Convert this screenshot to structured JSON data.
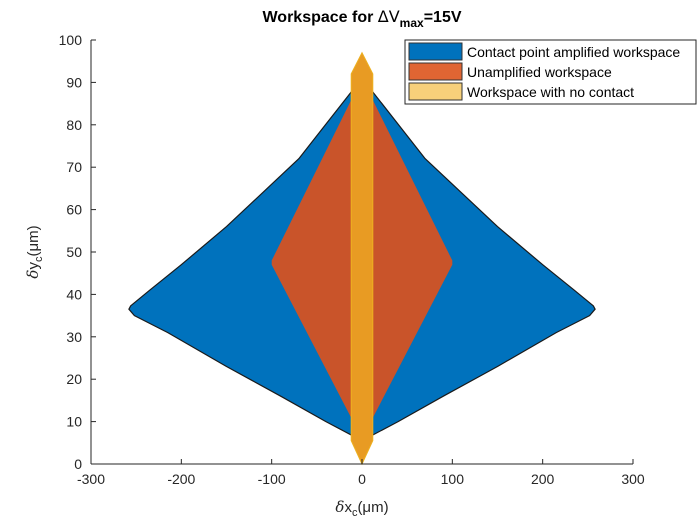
{
  "chart_data": {
    "type": "area",
    "title": {
      "prefix": "Workspace for ",
      "delta": "ΔV",
      "sub": "max",
      "suffix": "=15V"
    },
    "xlabel": {
      "delta": "δ",
      "main": "x",
      "sub": "c",
      "unit": "(μm)"
    },
    "ylabel": {
      "delta": "δ",
      "main": "y",
      "sub": "c",
      "unit": "(μm)"
    },
    "xlim": [
      -300,
      300
    ],
    "ylim": [
      0,
      100
    ],
    "xticks": [
      -300,
      -200,
      -100,
      0,
      100,
      200,
      300
    ],
    "yticks": [
      0,
      10,
      20,
      30,
      40,
      50,
      60,
      70,
      80,
      90,
      100
    ],
    "xtick_labels": [
      "-300",
      "-200",
      "-100",
      "0",
      "100",
      "200",
      "300"
    ],
    "ytick_labels": [
      "0",
      "10",
      "20",
      "30",
      "40",
      "50",
      "60",
      "70",
      "80",
      "90",
      "100"
    ],
    "grid": false,
    "legend_position": "top-right",
    "colors": {
      "amplified": "#0072bd",
      "unamplified": "#c9542a",
      "no_contact_fill": "#e89b23",
      "no_contact_edge": "#edb120",
      "outline": "#1a1a1a",
      "axis": "#262626"
    },
    "series": [
      {
        "name": "Contact point amplified workspace",
        "legend_color": "#0072bd",
        "points": [
          [
            0,
            91
          ],
          [
            -70,
            72
          ],
          [
            -150,
            56
          ],
          [
            -200,
            47
          ],
          [
            -235,
            41
          ],
          [
            -256,
            37.3
          ],
          [
            -258,
            36.5
          ],
          [
            -252,
            35
          ],
          [
            -215,
            31
          ],
          [
            -150,
            23
          ],
          [
            -90,
            16
          ],
          [
            -40,
            10
          ],
          [
            0,
            5.5
          ],
          [
            40,
            10
          ],
          [
            90,
            16
          ],
          [
            150,
            23
          ],
          [
            215,
            31
          ],
          [
            252,
            35
          ],
          [
            258,
            36.5
          ],
          [
            256,
            37.3
          ],
          [
            235,
            41
          ],
          [
            200,
            47
          ],
          [
            150,
            56
          ],
          [
            70,
            72
          ]
        ]
      },
      {
        "name": "Unamplified workspace",
        "legend_color": "#e06533",
        "points": [
          [
            0,
            91
          ],
          [
            -100,
            48
          ],
          [
            -100,
            47
          ],
          [
            0,
            6
          ],
          [
            100,
            47
          ],
          [
            100,
            48
          ]
        ]
      },
      {
        "name": "Workspace with no contact",
        "legend_color": "#f7d07a",
        "points": [
          [
            0,
            97
          ],
          [
            -12,
            92
          ],
          [
            -12,
            5.5
          ],
          [
            0,
            0
          ],
          [
            12,
            5.5
          ],
          [
            12,
            92
          ]
        ]
      }
    ]
  }
}
